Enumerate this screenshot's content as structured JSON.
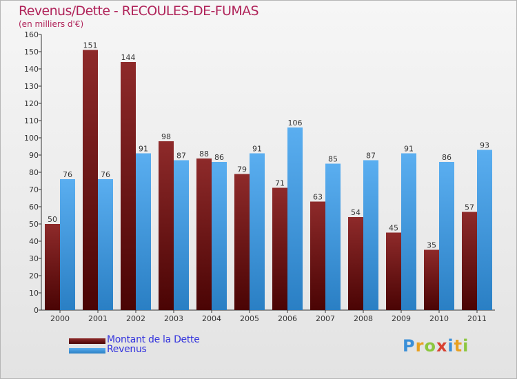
{
  "title": "Revenus/Dette - RECOULES-DE-FUMAS",
  "subtitle": "(en milliers d'€)",
  "colors": {
    "dette": "#7a1a1a",
    "revenus": "#3d9be0",
    "title": "#b0245a",
    "legend_text": "#3333dd"
  },
  "chart_data": {
    "type": "bar",
    "categories": [
      "2000",
      "2001",
      "2002",
      "2003",
      "2004",
      "2005",
      "2006",
      "2007",
      "2008",
      "2009",
      "2010",
      "2011"
    ],
    "series": [
      {
        "name": "Montant de la Dette",
        "values": [
          50,
          151,
          144,
          98,
          88,
          79,
          71,
          63,
          54,
          45,
          35,
          57
        ]
      },
      {
        "name": "Revenus",
        "values": [
          76,
          76,
          91,
          87,
          86,
          91,
          106,
          85,
          87,
          91,
          86,
          93
        ]
      }
    ],
    "ylim": [
      0,
      160
    ],
    "yticks": [
      0,
      10,
      20,
      30,
      40,
      50,
      60,
      70,
      80,
      90,
      100,
      110,
      120,
      130,
      140,
      150,
      160
    ],
    "grid": false,
    "legend_position": "bottom-left"
  },
  "legend": [
    {
      "label": "Montant de la Dette"
    },
    {
      "label": "Revenus"
    }
  ],
  "logo": {
    "text": "Proxiti",
    "letters": [
      "P",
      "r",
      "o",
      "x",
      "i",
      "t",
      "i"
    ],
    "letter_colors": [
      "#3a8fd8",
      "#e8a020",
      "#8cc63e",
      "#d84030",
      "#3a8fd8",
      "#e8a020",
      "#8cc63e"
    ]
  }
}
